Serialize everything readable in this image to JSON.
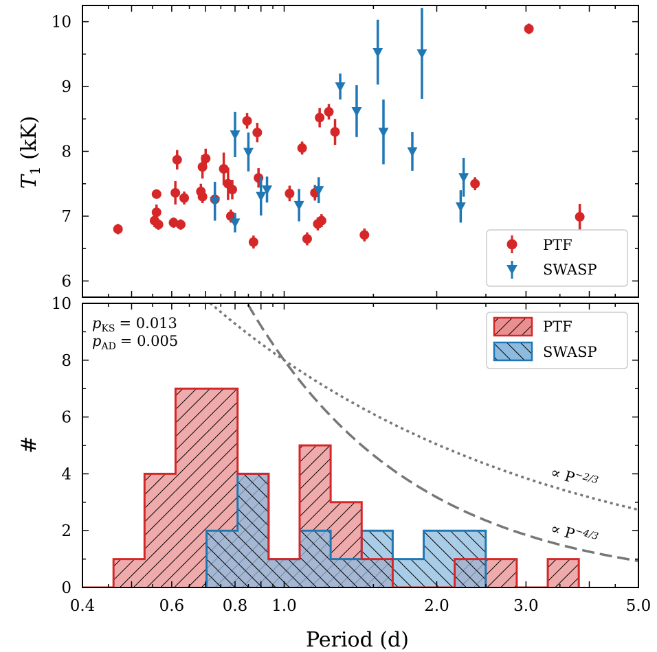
{
  "chart_data": [
    {
      "type": "scatter",
      "xscale": "log",
      "ylabel": "T1 (kK)",
      "ylabel_main": "T",
      "ylabel_sub": "1",
      "ylabel_unit": " (kK)",
      "xlim": [
        0.4,
        5.0
      ],
      "ylim": [
        5.75,
        10.25
      ],
      "yticks": [
        6,
        7,
        8,
        9,
        10
      ],
      "legend": {
        "position": "lower-right"
      },
      "series": [
        {
          "name": "PTF",
          "color": "#d62728",
          "marker": "circle",
          "points": [
            {
              "x": 0.47,
              "y": 6.8,
              "err": 0.08
            },
            {
              "x": 0.555,
              "y": 6.93,
              "err": 0.1
            },
            {
              "x": 0.56,
              "y": 7.06,
              "err": 0.12
            },
            {
              "x": 0.56,
              "y": 7.34,
              "err": 0.06
            },
            {
              "x": 0.565,
              "y": 6.87,
              "err": 0.08
            },
            {
              "x": 0.605,
              "y": 6.9,
              "err": 0.08
            },
            {
              "x": 0.61,
              "y": 7.36,
              "err": 0.18
            },
            {
              "x": 0.615,
              "y": 7.87,
              "err": 0.15
            },
            {
              "x": 0.625,
              "y": 6.87,
              "err": 0.08
            },
            {
              "x": 0.635,
              "y": 7.28,
              "err": 0.1
            },
            {
              "x": 0.685,
              "y": 7.38,
              "err": 0.12
            },
            {
              "x": 0.69,
              "y": 7.3,
              "err": 0.1
            },
            {
              "x": 0.69,
              "y": 7.76,
              "err": 0.18
            },
            {
              "x": 0.7,
              "y": 7.89,
              "err": 0.15
            },
            {
              "x": 0.73,
              "y": 7.26,
              "err": 0.12
            },
            {
              "x": 0.76,
              "y": 7.73,
              "err": 0.25
            },
            {
              "x": 0.775,
              "y": 7.5,
              "err": 0.25
            },
            {
              "x": 0.785,
              "y": 7.0,
              "err": 0.1
            },
            {
              "x": 0.79,
              "y": 7.41,
              "err": 0.15
            },
            {
              "x": 0.845,
              "y": 8.47,
              "err": 0.12
            },
            {
              "x": 0.87,
              "y": 6.6,
              "err": 0.1
            },
            {
              "x": 0.885,
              "y": 8.29,
              "err": 0.15
            },
            {
              "x": 0.89,
              "y": 7.59,
              "err": 0.15
            },
            {
              "x": 1.025,
              "y": 7.35,
              "err": 0.12
            },
            {
              "x": 1.085,
              "y": 8.05,
              "err": 0.1
            },
            {
              "x": 1.11,
              "y": 6.65,
              "err": 0.1
            },
            {
              "x": 1.15,
              "y": 7.36,
              "err": 0.12
            },
            {
              "x": 1.165,
              "y": 6.88,
              "err": 0.1
            },
            {
              "x": 1.175,
              "y": 8.52,
              "err": 0.15
            },
            {
              "x": 1.185,
              "y": 6.93,
              "err": 0.1
            },
            {
              "x": 1.225,
              "y": 8.61,
              "err": 0.12
            },
            {
              "x": 1.26,
              "y": 8.3,
              "err": 0.2
            },
            {
              "x": 1.44,
              "y": 6.71,
              "err": 0.1
            },
            {
              "x": 2.38,
              "y": 7.5,
              "err": 0.1
            },
            {
              "x": 3.04,
              "y": 9.89,
              "err": 0.08
            },
            {
              "x": 3.83,
              "y": 6.99,
              "err": 0.2
            }
          ]
        },
        {
          "name": "SWASP",
          "color": "#1f77b4",
          "marker": "triangle-down",
          "points": [
            {
              "x": 0.73,
              "y": 7.23,
              "err": 0.3
            },
            {
              "x": 0.8,
              "y": 8.26,
              "err": 0.35
            },
            {
              "x": 0.8,
              "y": 6.9,
              "err": 0.15
            },
            {
              "x": 0.85,
              "y": 7.99,
              "err": 0.3
            },
            {
              "x": 0.9,
              "y": 7.31,
              "err": 0.3
            },
            {
              "x": 0.925,
              "y": 7.41,
              "err": 0.2
            },
            {
              "x": 1.07,
              "y": 7.17,
              "err": 0.25
            },
            {
              "x": 1.17,
              "y": 7.4,
              "err": 0.2
            },
            {
              "x": 1.29,
              "y": 9.0,
              "err": 0.2
            },
            {
              "x": 1.39,
              "y": 8.62,
              "err": 0.4
            },
            {
              "x": 1.53,
              "y": 9.53,
              "err": 0.5
            },
            {
              "x": 1.57,
              "y": 8.3,
              "err": 0.5
            },
            {
              "x": 1.79,
              "y": 8.0,
              "err": 0.3
            },
            {
              "x": 1.87,
              "y": 9.51,
              "err": 0.7
            },
            {
              "x": 2.23,
              "y": 7.15,
              "err": 0.25
            },
            {
              "x": 2.26,
              "y": 7.6,
              "err": 0.3
            }
          ]
        }
      ]
    },
    {
      "type": "histogram",
      "xscale": "log",
      "xlabel": "Period (d)",
      "ylabel": "#",
      "xlim": [
        0.4,
        5.0
      ],
      "ylim": [
        0,
        10
      ],
      "yticks": [
        0,
        2,
        4,
        6,
        8,
        10
      ],
      "xticks": [
        0.4,
        0.6,
        0.8,
        1.0,
        2.0,
        3.0,
        5.0
      ],
      "xtick_labels": [
        "0.4",
        "0.6",
        "0.8",
        "1.0",
        "2.0",
        "3.0",
        "5.0"
      ],
      "legend": {
        "position": "top-right"
      },
      "annotations": {
        "pks": "= 0.013",
        "pad": "= 0.005"
      },
      "series": [
        {
          "name": "PTF",
          "color": "#d62728",
          "fill": "#ea8f90",
          "hatch": "/",
          "bins": [
            {
              "x0": 0.4,
              "x1": 0.4606,
              "count": 0
            },
            {
              "x0": 0.4606,
              "x1": 0.5303,
              "count": 1
            },
            {
              "x0": 0.5303,
              "x1": 0.6105,
              "count": 4
            },
            {
              "x0": 0.6105,
              "x1": 0.7029,
              "count": 7
            },
            {
              "x0": 0.7029,
              "x1": 0.8093,
              "count": 7
            },
            {
              "x0": 0.8093,
              "x1": 0.9318,
              "count": 4
            },
            {
              "x0": 0.9318,
              "x1": 1.0728,
              "count": 1
            },
            {
              "x0": 1.0728,
              "x1": 1.2351,
              "count": 5
            },
            {
              "x0": 1.2351,
              "x1": 1.422,
              "count": 3
            },
            {
              "x0": 1.422,
              "x1": 1.6372,
              "count": 1
            },
            {
              "x0": 1.6372,
              "x1": 1.8849,
              "count": 0
            },
            {
              "x0": 1.8849,
              "x1": 2.1701,
              "count": 0
            },
            {
              "x0": 2.1701,
              "x1": 2.4986,
              "count": 1
            },
            {
              "x0": 2.4986,
              "x1": 2.8766,
              "count": 1
            },
            {
              "x0": 2.8766,
              "x1": 3.312,
              "count": 0
            },
            {
              "x0": 3.312,
              "x1": 3.8131,
              "count": 1
            }
          ]
        },
        {
          "name": "SWASP",
          "color": "#1f77b4",
          "fill": "#8cbbdf",
          "hatch": "\\",
          "bins": [
            {
              "x0": 0.7029,
              "x1": 0.8093,
              "count": 2
            },
            {
              "x0": 0.8093,
              "x1": 0.9318,
              "count": 4
            },
            {
              "x0": 0.9318,
              "x1": 1.0728,
              "count": 1
            },
            {
              "x0": 1.0728,
              "x1": 1.2351,
              "count": 2
            },
            {
              "x0": 1.2351,
              "x1": 1.422,
              "count": 1
            },
            {
              "x0": 1.422,
              "x1": 1.6372,
              "count": 2
            },
            {
              "x0": 1.6372,
              "x1": 1.8849,
              "count": 1
            },
            {
              "x0": 1.8849,
              "x1": 2.1701,
              "count": 2
            },
            {
              "x0": 2.1701,
              "x1": 2.4986,
              "count": 2
            }
          ]
        }
      ],
      "reference_curves": [
        {
          "name": "P^-2/3",
          "label": "∝ P",
          "exponent_label": "−2/3",
          "power": -0.6667,
          "norm": 8.0,
          "style": "dotted",
          "color": "#777777"
        },
        {
          "name": "P^-4/3",
          "label": "∝ P",
          "exponent_label": "−4/3",
          "power": -1.3333,
          "norm": 8.0,
          "style": "dashed",
          "color": "#777777"
        }
      ]
    }
  ]
}
